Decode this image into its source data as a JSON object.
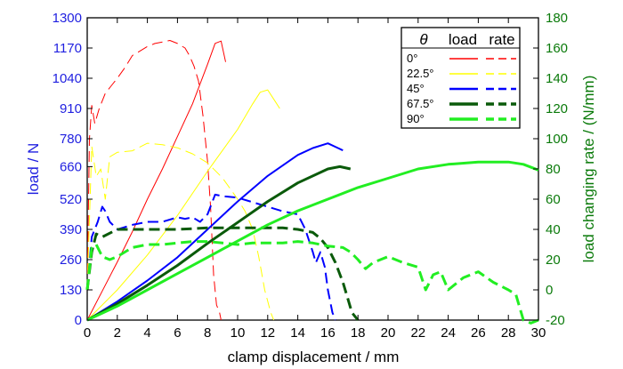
{
  "chart_data": {
    "type": "line",
    "xlabel": "clamp displacement / mm",
    "ylabel": "load / N",
    "y2label": "load changing rate / (N/mm)",
    "xlim": [
      0,
      30
    ],
    "ylim": [
      0,
      1300
    ],
    "y2lim": [
      -20,
      180
    ],
    "xticks": [
      0,
      2,
      4,
      6,
      8,
      10,
      12,
      14,
      16,
      18,
      20,
      22,
      24,
      26,
      28,
      30
    ],
    "yticks": [
      0,
      130,
      260,
      390,
      520,
      660,
      780,
      910,
      1040,
      1170,
      1300
    ],
    "y2ticks": [
      -20,
      0,
      20,
      40,
      60,
      80,
      100,
      120,
      140,
      160,
      180
    ],
    "legend": {
      "header": [
        "θ",
        "load",
        "rate"
      ],
      "placement": "top-right",
      "entries": [
        "0°",
        "22.5°",
        "45°",
        "67.5°",
        "90°"
      ]
    },
    "series": [
      {
        "name": "0°",
        "kind": "load",
        "axis": "left",
        "color": "#ff0000",
        "dash": "solid",
        "width": 1,
        "x": [
          0,
          1,
          2,
          3,
          4,
          5,
          6,
          7,
          8,
          8.5,
          8.9,
          9.2
        ],
        "y": [
          0,
          125,
          250,
          380,
          520,
          650,
          790,
          930,
          1100,
          1190,
          1200,
          1110
        ]
      },
      {
        "name": "0°",
        "kind": "rate",
        "axis": "right",
        "color": "#ff0000",
        "dash": "dash",
        "width": 1,
        "x": [
          0,
          0.15,
          0.3,
          0.5,
          0.8,
          1.2,
          1.6,
          2.0,
          2.5,
          3,
          3.5,
          4,
          4.5,
          5,
          5.5,
          6,
          6.5,
          6.8,
          7.1,
          7.4,
          7.7,
          8.0,
          8.2,
          8.4,
          8.6,
          8.8,
          8.9
        ],
        "y": [
          0,
          100,
          122,
          110,
          120,
          130,
          135,
          140,
          147,
          155,
          158,
          161,
          163,
          164,
          165,
          163,
          160,
          155,
          148,
          138,
          115,
          85,
          55,
          10,
          -10,
          -15,
          -20
        ]
      },
      {
        "name": "22.5°",
        "kind": "load",
        "axis": "left",
        "color": "#ffff00",
        "dash": "solid",
        "width": 1,
        "x": [
          0,
          2,
          4,
          6,
          8,
          10,
          11,
          11.5,
          12,
          12.5,
          12.8
        ],
        "y": [
          0,
          130,
          280,
          450,
          640,
          820,
          930,
          980,
          990,
          940,
          910
        ]
      },
      {
        "name": "22.5°",
        "kind": "rate",
        "axis": "right",
        "color": "#ffff00",
        "dash": "dash",
        "width": 1,
        "x": [
          0,
          0.3,
          0.6,
          0.9,
          1.2,
          1.5,
          2,
          3,
          4,
          5,
          6,
          7,
          8,
          9,
          10,
          10.5,
          11,
          11.4,
          11.8,
          12.2,
          12.4
        ],
        "y": [
          0,
          95,
          75,
          80,
          60,
          88,
          91,
          92,
          97,
          96,
          94,
          90,
          84,
          74,
          60,
          52,
          40,
          22,
          0,
          -15,
          -20
        ]
      },
      {
        "name": "45°",
        "kind": "load",
        "axis": "left",
        "color": "#0000ff",
        "dash": "solid",
        "width": 2,
        "x": [
          0,
          2,
          4,
          6,
          8,
          10,
          12,
          14,
          15,
          16,
          17
        ],
        "y": [
          0,
          80,
          170,
          270,
          390,
          510,
          620,
          710,
          740,
          760,
          730
        ]
      },
      {
        "name": "45°",
        "kind": "rate",
        "axis": "right",
        "color": "#0000ff",
        "dash": "dash",
        "width": 2,
        "x": [
          0,
          0.3,
          0.7,
          1.0,
          1.2,
          1.5,
          2,
          3,
          4,
          5,
          6,
          6.5,
          7,
          7.5,
          8,
          8.5,
          9,
          10,
          11,
          12,
          13,
          14,
          14.5,
          15,
          15.2,
          15.5,
          15.8,
          16,
          16.3,
          16.5
        ],
        "y": [
          0,
          35,
          45,
          55,
          52,
          45,
          40,
          43,
          45,
          45,
          48,
          47,
          48,
          45,
          50,
          63,
          62,
          61,
          58,
          55,
          52,
          50,
          40,
          25,
          18,
          25,
          15,
          0,
          -15,
          -20
        ]
      },
      {
        "name": "67.5°",
        "kind": "load",
        "axis": "left",
        "color": "#0a5a0a",
        "dash": "solid",
        "width": 3,
        "x": [
          0,
          2,
          4,
          6,
          8,
          10,
          12,
          14,
          16,
          16.8,
          17.5
        ],
        "y": [
          0,
          70,
          150,
          235,
          330,
          420,
          510,
          590,
          650,
          660,
          650
        ]
      },
      {
        "name": "67.5°",
        "kind": "rate",
        "axis": "right",
        "color": "#0a5a0a",
        "dash": "dash",
        "width": 3,
        "x": [
          0,
          0.3,
          0.6,
          1.0,
          2,
          3,
          4,
          6,
          8,
          10,
          12,
          13,
          14,
          15,
          15.5,
          16,
          16.5,
          17,
          17.3,
          17.6,
          18
        ],
        "y": [
          0,
          25,
          37,
          35,
          40,
          40,
          40,
          40,
          41,
          41,
          41,
          41,
          40,
          38,
          34,
          28,
          18,
          5,
          -5,
          -15,
          -20
        ]
      },
      {
        "name": "90°",
        "kind": "load",
        "axis": "left",
        "color": "#22ee22",
        "dash": "solid",
        "width": 3,
        "x": [
          0,
          2,
          4,
          6,
          8,
          10,
          12,
          14,
          16,
          18,
          20,
          22,
          24,
          26,
          28,
          29,
          30
        ],
        "y": [
          0,
          60,
          130,
          200,
          270,
          340,
          410,
          470,
          520,
          570,
          610,
          650,
          670,
          680,
          680,
          670,
          645
        ]
      },
      {
        "name": "90°",
        "kind": "rate",
        "axis": "right",
        "color": "#22ee22",
        "dash": "dash",
        "width": 3,
        "x": [
          0,
          0.3,
          0.6,
          1.0,
          1.5,
          2,
          3,
          4,
          5,
          6,
          7,
          8,
          9,
          10,
          11,
          12,
          13,
          14,
          15,
          16,
          17,
          17.5,
          18,
          18.5,
          19,
          20,
          21,
          22,
          22.5,
          23,
          23.5,
          24,
          25,
          26,
          27,
          28,
          28.5,
          29,
          29.5,
          30
        ],
        "y": [
          0,
          28,
          30,
          22,
          20,
          22,
          28,
          30,
          30,
          31,
          32,
          32,
          31,
          30,
          31,
          31,
          31,
          32,
          31,
          29,
          28,
          25,
          20,
          14,
          18,
          22,
          18,
          15,
          0,
          10,
          12,
          0,
          8,
          12,
          5,
          0,
          -3,
          -20,
          -22,
          -20
        ]
      }
    ]
  }
}
